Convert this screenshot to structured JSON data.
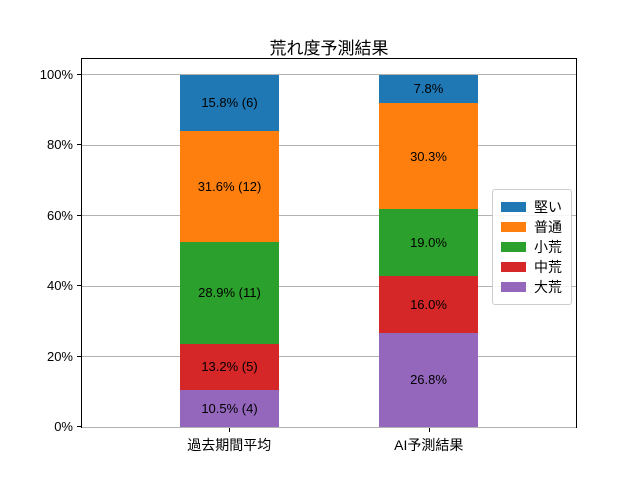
{
  "chart_data": {
    "type": "bar",
    "stacked": true,
    "orientation": "vertical",
    "title": "荒れ度予測結果",
    "categories": [
      "過去期間平均",
      "AI予測結果"
    ],
    "series": [
      {
        "name": "大荒",
        "color": "#9467bd",
        "values": [
          10.5,
          26.8
        ],
        "labels": [
          "10.5% (4)",
          "26.8%"
        ]
      },
      {
        "name": "中荒",
        "color": "#d62728",
        "values": [
          13.2,
          16.0
        ],
        "labels": [
          "13.2% (5)",
          "16.0%"
        ]
      },
      {
        "name": "小荒",
        "color": "#2ca02c",
        "values": [
          28.9,
          19.0
        ],
        "labels": [
          "28.9% (11)",
          "19.0%"
        ]
      },
      {
        "name": "普通",
        "color": "#ff7f0e",
        "values": [
          31.6,
          30.3
        ],
        "labels": [
          "31.6% (12)",
          "30.3%"
        ]
      },
      {
        "name": "堅い",
        "color": "#1f77b4",
        "values": [
          15.8,
          7.8
        ],
        "labels": [
          "15.8% (6)",
          "7.8%"
        ]
      }
    ],
    "legend": {
      "position": "center-right",
      "entries": [
        {
          "label": "堅い",
          "color": "#1f77b4"
        },
        {
          "label": "普通",
          "color": "#ff7f0e"
        },
        {
          "label": "小荒",
          "color": "#2ca02c"
        },
        {
          "label": "中荒",
          "color": "#d62728"
        },
        {
          "label": "大荒",
          "color": "#9467bd"
        }
      ]
    },
    "xlabel": "",
    "ylabel": "",
    "y_ticks": [
      "0%",
      "20%",
      "40%",
      "60%",
      "80%",
      "100%"
    ],
    "y_tick_values": [
      0,
      20,
      40,
      60,
      80,
      100
    ],
    "ylim": [
      0,
      104.5
    ],
    "grid": "horizontal"
  },
  "colors": {
    "background": "#ffffff",
    "grid": "#b2b2b2",
    "spine": "#000000",
    "text": "#000000",
    "legend_border": "#cccccc"
  }
}
